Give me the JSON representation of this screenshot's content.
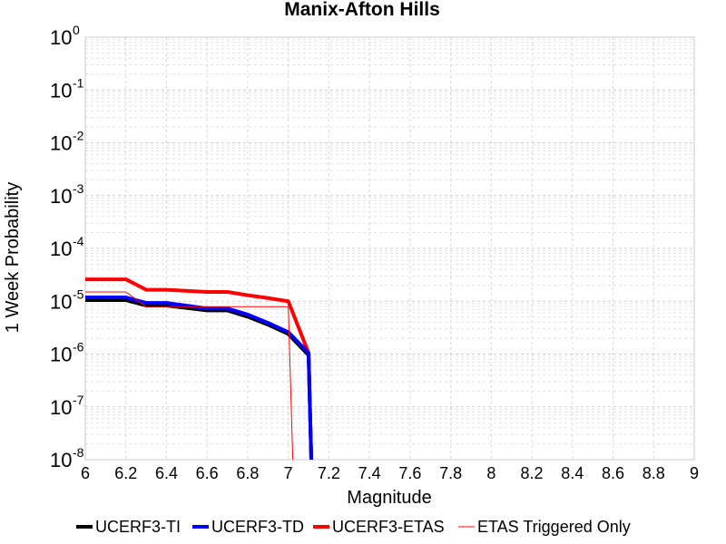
{
  "chart_data": {
    "type": "line",
    "title": "Manix-Afton Hills",
    "xlabel": "Magnitude",
    "ylabel": "1 Week Probability",
    "xlim": [
      6,
      9
    ],
    "ylim": [
      1e-08,
      1
    ],
    "yscale": "log",
    "grid": true,
    "legend_position": "bottom",
    "x_ticks": [
      "6",
      "6.2",
      "6.4",
      "6.6",
      "6.8",
      "7",
      "7.2",
      "7.4",
      "7.6",
      "7.8",
      "8",
      "8.2",
      "8.4",
      "8.6",
      "8.8",
      "9"
    ],
    "y_ticks": [
      {
        "base": "10",
        "exp": "0"
      },
      {
        "base": "10",
        "exp": "-1"
      },
      {
        "base": "10",
        "exp": "-2"
      },
      {
        "base": "10",
        "exp": "-3"
      },
      {
        "base": "10",
        "exp": "-4"
      },
      {
        "base": "10",
        "exp": "-5"
      },
      {
        "base": "10",
        "exp": "-6"
      },
      {
        "base": "10",
        "exp": "-7"
      },
      {
        "base": "10",
        "exp": "-8"
      }
    ],
    "series": [
      {
        "name": "UCERF3-TI",
        "color": "#000000",
        "width": 4,
        "x": [
          6.0,
          6.2,
          6.3,
          6.4,
          6.6,
          6.7,
          6.8,
          6.9,
          7.0,
          7.1,
          7.12
        ],
        "y": [
          1.05e-05,
          1.05e-05,
          8.3e-06,
          8.3e-06,
          6.7e-06,
          6.7e-06,
          5.1e-06,
          3.6e-06,
          2.4e-06,
          9.5e-07,
          1e-09
        ]
      },
      {
        "name": "UCERF3-TD",
        "color": "#0000ff",
        "width": 4,
        "x": [
          6.0,
          6.2,
          6.3,
          6.4,
          6.6,
          6.7,
          6.8,
          6.9,
          7.0,
          7.1,
          7.12
        ],
        "y": [
          1.18e-05,
          1.18e-05,
          9.3e-06,
          9.3e-06,
          7.3e-06,
          7.3e-06,
          5.6e-06,
          3.9e-06,
          2.6e-06,
          1.05e-06,
          1e-09
        ]
      },
      {
        "name": "UCERF3-ETAS",
        "color": "#ff0000",
        "width": 4,
        "x": [
          6.0,
          6.2,
          6.3,
          6.4,
          6.6,
          6.7,
          6.8,
          6.9,
          7.0,
          7.1,
          7.12
        ],
        "y": [
          2.6e-05,
          2.6e-05,
          1.65e-05,
          1.65e-05,
          1.5e-05,
          1.5e-05,
          1.3e-05,
          1.15e-05,
          1e-05,
          1.05e-06,
          1e-09
        ]
      },
      {
        "name": "ETAS Triggered Only",
        "color": "#ff0000",
        "width": 1,
        "x": [
          6.0,
          6.2,
          6.3,
          6.4,
          6.6,
          6.7,
          6.8,
          6.9,
          7.0,
          7.03
        ],
        "y": [
          1.5e-05,
          1.5e-05,
          7.9e-06,
          7.9e-06,
          7.9e-06,
          7.9e-06,
          7.9e-06,
          7.9e-06,
          7.9e-06,
          1e-09
        ]
      }
    ]
  }
}
